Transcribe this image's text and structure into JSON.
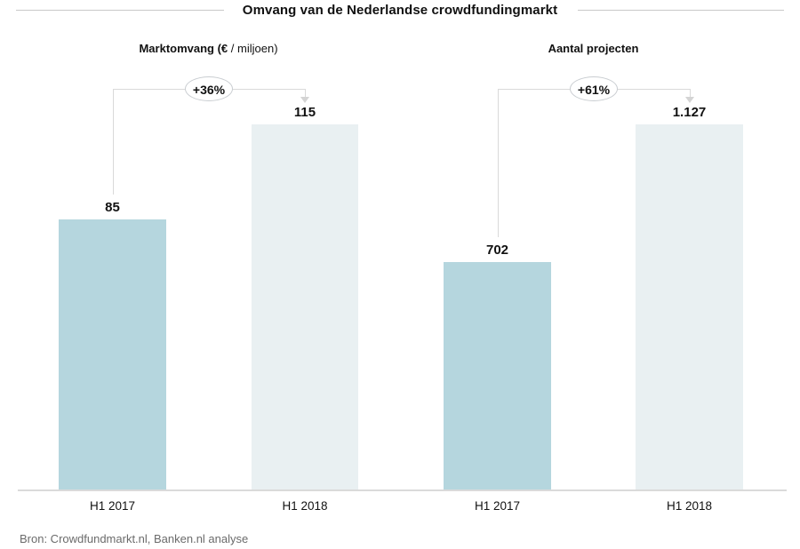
{
  "header": {
    "title": "Omvang van de Nederlandse crowdfundingmarkt"
  },
  "source_note": "Bron: Crowdfundmarkt.nl, Banken.nl analyse",
  "colors": {
    "bar_h1_2017": "#b5d6de",
    "bar_h1_2018": "#e9f0f2",
    "connector_line": "#d9d9d9",
    "baseline": "#dadada",
    "source_text": "#6b6b6b",
    "text": "#111111"
  },
  "chart_data": [
    {
      "type": "bar",
      "title": "Marktomvang (€ / miljoen)",
      "subtitle_bold": "Marktomvang (€ ",
      "subtitle_light": "/ miljoen)",
      "categories": [
        "H1 2017",
        "H1 2018"
      ],
      "values": [
        85,
        115
      ],
      "value_labels": [
        "85",
        "115"
      ],
      "growth_label": "+36%",
      "xlabel": "",
      "ylabel": "",
      "ylim": [
        0,
        115
      ],
      "grid": false,
      "legend": false
    },
    {
      "type": "bar",
      "title": "Aantal projecten",
      "subtitle_bold": "Aantal projecten",
      "subtitle_light": "",
      "categories": [
        "H1 2017",
        "H1 2018"
      ],
      "values": [
        702,
        1127
      ],
      "value_labels": [
        "702",
        "1.127"
      ],
      "growth_label": "+61%",
      "xlabel": "",
      "ylabel": "",
      "ylim": [
        0,
        1127
      ],
      "grid": false,
      "legend": false
    }
  ]
}
